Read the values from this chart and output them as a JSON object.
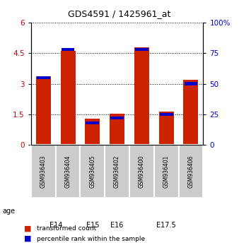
{
  "title": "GDS4591 / 1425961_at",
  "samples": [
    "GSM936403",
    "GSM936404",
    "GSM936405",
    "GSM936402",
    "GSM936400",
    "GSM936401",
    "GSM936406"
  ],
  "transformed_counts": [
    3.35,
    4.6,
    1.3,
    1.55,
    4.78,
    1.62,
    3.2
  ],
  "percentile_ranks": [
    55,
    78,
    18,
    22,
    78,
    25,
    50
  ],
  "age_groups": [
    {
      "label": "E14",
      "start": 0,
      "end": 1,
      "color": "#ccffcc"
    },
    {
      "label": "E15",
      "start": 2,
      "end": 2,
      "color": "#88ee88"
    },
    {
      "label": "E16",
      "start": 3,
      "end": 3,
      "color": "#88ee88"
    },
    {
      "label": "E17.5",
      "start": 4,
      "end": 6,
      "color": "#33dd33"
    }
  ],
  "left_ylim": [
    0,
    6
  ],
  "left_yticks": [
    0,
    1.5,
    3,
    4.5,
    6
  ],
  "left_ytick_labels": [
    "0",
    "1.5",
    "3",
    "4.5",
    "6"
  ],
  "left_color": "#cc0000",
  "right_ylim": [
    0,
    100
  ],
  "right_yticks": [
    0,
    25,
    50,
    75,
    100
  ],
  "right_ytick_labels": [
    "0",
    "25",
    "50",
    "75",
    "100%"
  ],
  "right_color": "#0000cc",
  "bar_color": "#cc2200",
  "percentile_color": "#0000cc",
  "bar_width": 0.6,
  "sample_box_color": "#cccccc",
  "legend_red": "transformed count",
  "legend_blue": "percentile rank within the sample",
  "age_label": "age"
}
